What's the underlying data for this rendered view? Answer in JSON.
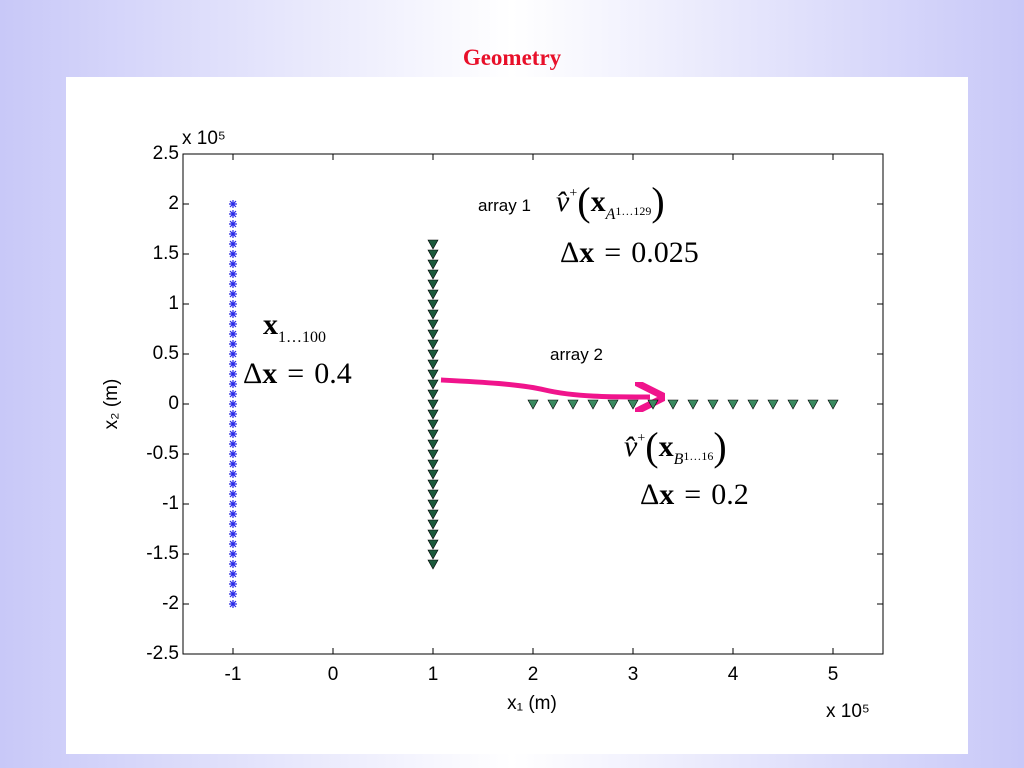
{
  "title": "Geometry",
  "chart_data": {
    "type": "scatter",
    "xlabel": "x₁ (m)",
    "ylabel": "x₂ (m)",
    "xmultiplier": "x 10⁵",
    "ymultiplier": "x 10⁵",
    "xlim": [
      -1.5,
      5.5
    ],
    "ylim": [
      -2.5,
      2.5
    ],
    "xticks": [
      -1,
      0,
      1,
      2,
      3,
      4,
      5
    ],
    "yticks": [
      -2.5,
      -2,
      -1.5,
      -1,
      -0.5,
      0,
      0.5,
      1,
      1.5,
      2,
      2.5
    ],
    "grid": false,
    "series": [
      {
        "marker": "star",
        "color": "#2a2ae8",
        "x": [
          -1,
          -1,
          -1,
          -1,
          -1,
          -1,
          -1,
          -1,
          -1,
          -1,
          -1,
          -1,
          -1,
          -1,
          -1,
          -1,
          -1,
          -1,
          -1,
          -1,
          -1,
          -1,
          -1,
          -1,
          -1,
          -1,
          -1,
          -1,
          -1,
          -1,
          -1,
          -1,
          -1,
          -1,
          -1,
          -1,
          -1,
          -1,
          -1,
          -1,
          -1
        ],
        "y": [
          -2,
          -1.9,
          -1.8,
          -1.7,
          -1.6,
          -1.5,
          -1.4,
          -1.3,
          -1.2,
          -1.1,
          -1,
          -0.9,
          -0.8,
          -0.7,
          -0.6,
          -0.5,
          -0.4,
          -0.3,
          -0.2,
          -0.1,
          0,
          0.1,
          0.2,
          0.3,
          0.4,
          0.5,
          0.6,
          0.7,
          0.8,
          0.9,
          1,
          1.1,
          1.2,
          1.3,
          1.4,
          1.5,
          1.6,
          1.7,
          1.8,
          1.9,
          2
        ]
      },
      {
        "marker": "triangle",
        "color": "#1d5a3c",
        "x": [
          1,
          1,
          1,
          1,
          1,
          1,
          1,
          1,
          1,
          1,
          1,
          1,
          1,
          1,
          1,
          1,
          1,
          1,
          1,
          1,
          1,
          1,
          1,
          1,
          1,
          1,
          1,
          1,
          1,
          1,
          1,
          1,
          1
        ],
        "y": [
          -1.6,
          -1.5,
          -1.4,
          -1.3,
          -1.2,
          -1.1,
          -1,
          -0.9,
          -0.8,
          -0.7,
          -0.6,
          -0.5,
          -0.4,
          -0.3,
          -0.2,
          -0.1,
          0,
          0.1,
          0.2,
          0.3,
          0.4,
          0.5,
          0.6,
          0.7,
          0.8,
          0.9,
          1,
          1.1,
          1.2,
          1.3,
          1.4,
          1.5,
          1.6
        ]
      },
      {
        "marker": "triangle",
        "color": "#3a8a60",
        "x": [
          2,
          2.2,
          2.4,
          2.6,
          2.8,
          3,
          3.2,
          3.4,
          3.6,
          3.8,
          4,
          4.2,
          4.4,
          4.6,
          4.8,
          5
        ],
        "y": [
          0,
          0,
          0,
          0,
          0,
          0,
          0,
          0,
          0,
          0,
          0,
          0,
          0,
          0,
          0,
          0
        ]
      }
    ],
    "annotations": {
      "array1_label": "array 1",
      "array1_field": [
        "v̂",
        "+",
        "(",
        "x",
        "A",
        "1…129",
        ")"
      ],
      "array1_step": [
        "Δ",
        "x",
        "=",
        "0.025"
      ],
      "source_points": [
        "x",
        "1…100"
      ],
      "source_step": [
        "Δ",
        "x",
        "=",
        "0.4"
      ],
      "array2_label": "array 2",
      "array2_field": [
        "v̂",
        "+",
        "(",
        "x",
        "B",
        "1…16",
        ")"
      ],
      "array2_step": [
        "Δ",
        "x",
        "=",
        "0.2"
      ]
    }
  }
}
